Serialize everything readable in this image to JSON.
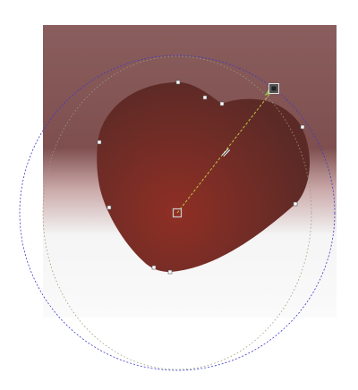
{
  "canvas": {
    "tool": "radial-gradient-editor",
    "background_gradient": {
      "top_color": "#8a5e5e",
      "mid_color": "#7f4f4f",
      "bottom_color": "#f5f5f5"
    },
    "shape": {
      "name": "heart",
      "gradient_type": "radial",
      "center_color": "#8f2f25",
      "edge_color": "#5c2a26"
    },
    "overlay": {
      "bounding_ellipse_color": "#3a3ac8",
      "inner_ellipse_color": "#9a9a7a",
      "handle_line_color": "#c0c040",
      "node_color": "#ffffff",
      "handle_square_color": "#555555"
    }
  }
}
